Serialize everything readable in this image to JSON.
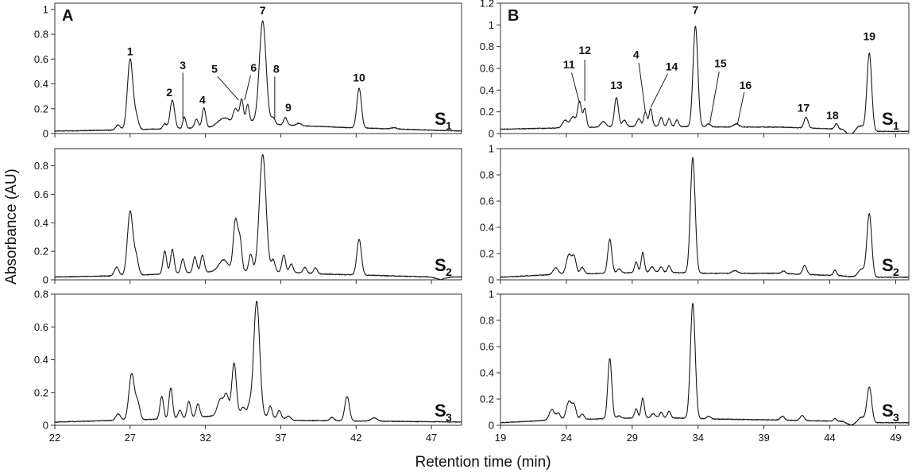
{
  "figure": {
    "ylabel": "Absorbance (AU)",
    "xlabel": "Retention time (min)"
  },
  "chart_data": [
    {
      "type": "line",
      "panel": "A",
      "sample": "S",
      "sample_sub": "1",
      "xlim": [
        22,
        49
      ],
      "ylim": [
        0,
        1.05
      ],
      "xticks": [
        22,
        27,
        32,
        37,
        42,
        47
      ],
      "yticks": [
        0,
        0.2,
        0.4,
        0.6,
        0.8,
        1
      ],
      "ytick_labels": [
        "0",
        "0.2",
        "0.4",
        "0.6",
        "0.8",
        "1"
      ],
      "baseline": [
        [
          22,
          0.02
        ],
        [
          27,
          0.03
        ],
        [
          33,
          0.05
        ],
        [
          35,
          0.1
        ],
        [
          37,
          0.07
        ],
        [
          41,
          0.05
        ],
        [
          49,
          0.02
        ]
      ],
      "peaks": [
        [
          26.2,
          0.04,
          0.15
        ],
        [
          27.0,
          0.57,
          0.18
        ],
        [
          27.4,
          0.1,
          0.15
        ],
        [
          29.3,
          0.04,
          0.12
        ],
        [
          29.8,
          0.23,
          0.15
        ],
        [
          30.6,
          0.09,
          0.1
        ],
        [
          31.4,
          0.07,
          0.12
        ],
        [
          31.9,
          0.16,
          0.12
        ],
        [
          33.2,
          0.07,
          0.4
        ],
        [
          34.0,
          0.12,
          0.15
        ],
        [
          34.4,
          0.19,
          0.12
        ],
        [
          34.8,
          0.14,
          0.1
        ],
        [
          35.8,
          0.82,
          0.22
        ],
        [
          36.5,
          0.05,
          0.12
        ],
        [
          37.3,
          0.06,
          0.12
        ],
        [
          38.2,
          0.02,
          0.15
        ],
        [
          42.2,
          0.32,
          0.15
        ],
        [
          44.5,
          0.01,
          0.2
        ]
      ],
      "labels": [
        {
          "text": "1",
          "x": 27.0,
          "y": 0.63
        },
        {
          "text": "2",
          "x": 29.6,
          "y": 0.3
        },
        {
          "text": "3",
          "x": 30.5,
          "y": 0.52,
          "line": [
            30.5,
            0.49,
            30.5,
            0.12
          ]
        },
        {
          "text": "4",
          "x": 31.8,
          "y": 0.24
        },
        {
          "text": "5",
          "x": 32.6,
          "y": 0.49,
          "line": [
            32.8,
            0.46,
            34.2,
            0.27
          ]
        },
        {
          "text": "6",
          "x": 35.2,
          "y": 0.5,
          "line": [
            35.0,
            0.47,
            34.6,
            0.27
          ]
        },
        {
          "text": "7",
          "x": 35.8,
          "y": 0.96
        },
        {
          "text": "8",
          "x": 36.7,
          "y": 0.49,
          "line": [
            36.6,
            0.46,
            36.6,
            0.12
          ]
        },
        {
          "text": "9",
          "x": 37.5,
          "y": 0.18
        },
        {
          "text": "10",
          "x": 42.2,
          "y": 0.42
        }
      ]
    },
    {
      "type": "line",
      "panel": "B",
      "sample": "S",
      "sample_sub": "1",
      "xlim": [
        19,
        50
      ],
      "ylim": [
        0,
        1.2
      ],
      "xticks": [
        19,
        24,
        29,
        34,
        39,
        44,
        49
      ],
      "yticks": [
        0,
        0.2,
        0.4,
        0.6,
        0.8,
        1,
        1.2
      ],
      "ytick_labels": [
        "0",
        "0.2",
        "0.4",
        "0.6",
        "0.8",
        "1",
        "1.2"
      ],
      "baseline": [
        [
          19,
          0.04
        ],
        [
          23,
          0.05
        ],
        [
          31,
          0.07
        ],
        [
          34,
          0.06
        ],
        [
          40,
          0.06
        ],
        [
          45,
          0.04
        ],
        [
          45.5,
          -0.02
        ],
        [
          46,
          0.02
        ],
        [
          50,
          0.02
        ]
      ],
      "peaks": [
        [
          23.9,
          0.07,
          0.2
        ],
        [
          24.5,
          0.1,
          0.2
        ],
        [
          25.0,
          0.24,
          0.15
        ],
        [
          25.4,
          0.17,
          0.12
        ],
        [
          26.8,
          0.05,
          0.2
        ],
        [
          27.8,
          0.27,
          0.15
        ],
        [
          28.4,
          0.06,
          0.15
        ],
        [
          29.5,
          0.07,
          0.15
        ],
        [
          30.0,
          0.13,
          0.12
        ],
        [
          30.4,
          0.16,
          0.12
        ],
        [
          31.2,
          0.08,
          0.12
        ],
        [
          31.8,
          0.07,
          0.12
        ],
        [
          32.4,
          0.06,
          0.12
        ],
        [
          33.8,
          0.93,
          0.18
        ],
        [
          34.8,
          0.03,
          0.15
        ],
        [
          36.9,
          0.03,
          0.2
        ],
        [
          42.2,
          0.1,
          0.15
        ],
        [
          44.5,
          0.05,
          0.12
        ],
        [
          46.3,
          0.05,
          0.25
        ],
        [
          47.0,
          0.72,
          0.18
        ]
      ],
      "labels": [
        {
          "text": "11",
          "x": 24.2,
          "y": 0.6,
          "line": [
            24.4,
            0.56,
            25.0,
            0.28
          ]
        },
        {
          "text": "12",
          "x": 25.4,
          "y": 0.73,
          "line": [
            25.4,
            0.68,
            25.4,
            0.3
          ]
        },
        {
          "text": "13",
          "x": 27.8,
          "y": 0.41
        },
        {
          "text": "4",
          "x": 29.3,
          "y": 0.69,
          "line": [
            29.5,
            0.65,
            30.0,
            0.2
          ]
        },
        {
          "text": "14",
          "x": 32.0,
          "y": 0.58,
          "line": [
            31.7,
            0.55,
            30.4,
            0.24
          ]
        },
        {
          "text": "7",
          "x": 33.8,
          "y": 1.1
        },
        {
          "text": "15",
          "x": 35.7,
          "y": 0.61,
          "line": [
            35.6,
            0.57,
            34.9,
            0.1
          ]
        },
        {
          "text": "16",
          "x": 37.6,
          "y": 0.41,
          "line": [
            37.5,
            0.38,
            37.0,
            0.09
          ]
        },
        {
          "text": "17",
          "x": 42.0,
          "y": 0.2
        },
        {
          "text": "18",
          "x": 44.2,
          "y": 0.13
        },
        {
          "text": "19",
          "x": 47.0,
          "y": 0.86
        }
      ]
    },
    {
      "type": "line",
      "panel": "",
      "sample": "S",
      "sample_sub": "2",
      "xlim": [
        22,
        49
      ],
      "ylim": [
        0,
        0.92
      ],
      "xticks": [
        22,
        27,
        32,
        37,
        42,
        47
      ],
      "yticks": [
        0,
        0.2,
        0.4,
        0.6,
        0.8
      ],
      "ytick_labels": [
        "0",
        "0.2",
        "0.4",
        "0.6",
        "0.8"
      ],
      "baseline": [
        [
          22,
          0.02
        ],
        [
          27,
          0.03
        ],
        [
          33,
          0.06
        ],
        [
          36,
          0.06
        ],
        [
          40,
          0.04
        ],
        [
          47,
          0.02
        ],
        [
          47.6,
          0.0
        ],
        [
          48.2,
          0.02
        ],
        [
          49,
          0.02
        ]
      ],
      "peaks": [
        [
          26.1,
          0.06,
          0.15
        ],
        [
          27.0,
          0.45,
          0.18
        ],
        [
          27.4,
          0.12,
          0.15
        ],
        [
          29.3,
          0.16,
          0.12
        ],
        [
          29.8,
          0.17,
          0.12
        ],
        [
          30.5,
          0.1,
          0.12
        ],
        [
          31.3,
          0.11,
          0.12
        ],
        [
          31.8,
          0.12,
          0.12
        ],
        [
          33.2,
          0.08,
          0.3
        ],
        [
          34.0,
          0.36,
          0.15
        ],
        [
          34.3,
          0.2,
          0.12
        ],
        [
          35.0,
          0.12,
          0.12
        ],
        [
          35.8,
          0.82,
          0.22
        ],
        [
          36.5,
          0.08,
          0.12
        ],
        [
          37.2,
          0.12,
          0.12
        ],
        [
          37.7,
          0.06,
          0.12
        ],
        [
          38.6,
          0.04,
          0.12
        ],
        [
          39.3,
          0.04,
          0.12
        ],
        [
          42.2,
          0.25,
          0.15
        ]
      ]
    },
    {
      "type": "line",
      "panel": "",
      "sample": "S",
      "sample_sub": "2",
      "xlim": [
        19,
        50
      ],
      "ylim": [
        0,
        1.0
      ],
      "xticks": [
        19,
        24,
        29,
        34,
        39,
        44,
        49
      ],
      "yticks": [
        0,
        0.2,
        0.4,
        0.6,
        0.8,
        1
      ],
      "ytick_labels": [
        "0",
        "0.2",
        "0.4",
        "0.6",
        "0.8",
        "1"
      ],
      "baseline": [
        [
          19,
          0.02
        ],
        [
          23,
          0.04
        ],
        [
          31,
          0.06
        ],
        [
          34,
          0.05
        ],
        [
          40,
          0.05
        ],
        [
          45,
          0.03
        ],
        [
          46,
          0.02
        ],
        [
          50,
          0.02
        ]
      ],
      "peaks": [
        [
          23.2,
          0.05,
          0.2
        ],
        [
          24.2,
          0.15,
          0.2
        ],
        [
          24.6,
          0.12,
          0.15
        ],
        [
          25.2,
          0.05,
          0.15
        ],
        [
          27.3,
          0.26,
          0.15
        ],
        [
          28.0,
          0.03,
          0.15
        ],
        [
          29.3,
          0.08,
          0.12
        ],
        [
          29.8,
          0.15,
          0.12
        ],
        [
          30.5,
          0.04,
          0.15
        ],
        [
          31.2,
          0.04,
          0.12
        ],
        [
          31.8,
          0.05,
          0.12
        ],
        [
          33.6,
          0.88,
          0.18
        ],
        [
          36.8,
          0.02,
          0.2
        ],
        [
          40.5,
          0.02,
          0.15
        ],
        [
          42.1,
          0.07,
          0.15
        ],
        [
          44.4,
          0.04,
          0.12
        ],
        [
          46.4,
          0.06,
          0.25
        ],
        [
          47.0,
          0.48,
          0.18
        ]
      ]
    },
    {
      "type": "line",
      "panel": "",
      "sample": "S",
      "sample_sub": "3",
      "xlim": [
        22,
        49
      ],
      "ylim": [
        0,
        0.8
      ],
      "xticks": [
        22,
        27,
        32,
        37,
        42,
        47
      ],
      "yticks": [
        0,
        0.2,
        0.4,
        0.6,
        0.8
      ],
      "ytick_labels": [
        "0",
        "0.2",
        "0.4",
        "0.6",
        "0.8"
      ],
      "baseline": [
        [
          22,
          0.02
        ],
        [
          26,
          0.03
        ],
        [
          30,
          0.04
        ],
        [
          33,
          0.06
        ],
        [
          35,
          0.06
        ],
        [
          38,
          0.03
        ],
        [
          49,
          0.02
        ]
      ],
      "peaks": [
        [
          26.2,
          0.04,
          0.15
        ],
        [
          27.1,
          0.28,
          0.18
        ],
        [
          27.5,
          0.1,
          0.15
        ],
        [
          29.1,
          0.14,
          0.12
        ],
        [
          29.7,
          0.19,
          0.12
        ],
        [
          30.3,
          0.05,
          0.12
        ],
        [
          30.9,
          0.1,
          0.12
        ],
        [
          31.5,
          0.08,
          0.12
        ],
        [
          33.0,
          0.1,
          0.2
        ],
        [
          33.4,
          0.12,
          0.15
        ],
        [
          33.9,
          0.32,
          0.15
        ],
        [
          34.5,
          0.05,
          0.15
        ],
        [
          34.9,
          0.05,
          0.12
        ],
        [
          35.4,
          0.7,
          0.2
        ],
        [
          36.3,
          0.07,
          0.12
        ],
        [
          36.9,
          0.05,
          0.12
        ],
        [
          37.5,
          0.02,
          0.15
        ],
        [
          40.4,
          0.02,
          0.15
        ],
        [
          41.4,
          0.15,
          0.15
        ],
        [
          43.2,
          0.02,
          0.2
        ]
      ]
    },
    {
      "type": "line",
      "panel": "",
      "sample": "S",
      "sample_sub": "3",
      "xlim": [
        19,
        50
      ],
      "ylim": [
        0,
        1.0
      ],
      "xticks": [
        19,
        24,
        29,
        34,
        39,
        44,
        49
      ],
      "yticks": [
        0,
        0.2,
        0.4,
        0.6,
        0.8,
        1
      ],
      "ytick_labels": [
        "0",
        "0.2",
        "0.4",
        "0.6",
        "0.8",
        "1"
      ],
      "baseline": [
        [
          19,
          0.02
        ],
        [
          23,
          0.04
        ],
        [
          31,
          0.06
        ],
        [
          34,
          0.05
        ],
        [
          40,
          0.04
        ],
        [
          45,
          0.03
        ],
        [
          45.6,
          0.0
        ],
        [
          46.2,
          0.02
        ],
        [
          50,
          0.02
        ]
      ],
      "peaks": [
        [
          22.9,
          0.08,
          0.2
        ],
        [
          23.4,
          0.05,
          0.15
        ],
        [
          24.2,
          0.14,
          0.2
        ],
        [
          24.6,
          0.1,
          0.15
        ],
        [
          25.2,
          0.04,
          0.15
        ],
        [
          27.3,
          0.46,
          0.15
        ],
        [
          28.0,
          0.02,
          0.15
        ],
        [
          29.3,
          0.07,
          0.12
        ],
        [
          29.8,
          0.15,
          0.12
        ],
        [
          30.6,
          0.03,
          0.15
        ],
        [
          31.2,
          0.04,
          0.12
        ],
        [
          31.8,
          0.05,
          0.12
        ],
        [
          33.6,
          0.88,
          0.18
        ],
        [
          34.8,
          0.02,
          0.15
        ],
        [
          40.4,
          0.03,
          0.15
        ],
        [
          41.9,
          0.04,
          0.15
        ],
        [
          44.4,
          0.02,
          0.12
        ],
        [
          46.4,
          0.04,
          0.25
        ],
        [
          47.0,
          0.27,
          0.18
        ]
      ]
    }
  ]
}
